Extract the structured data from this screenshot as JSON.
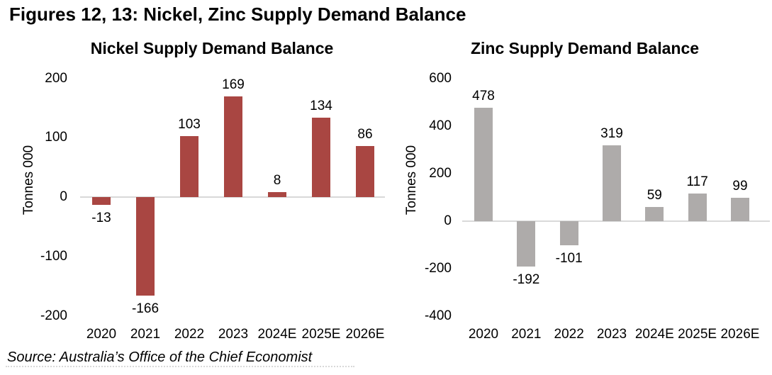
{
  "page": {
    "title": "Figures 12, 13: Nickel, Zinc Supply Demand Balance",
    "source": "Source: Australia’s Office of the Chief Economist"
  },
  "chart_data": [
    {
      "type": "bar",
      "title": "Nickel Supply Demand Balance",
      "ylabel": "Tonnes 000",
      "categories": [
        "2020",
        "2021",
        "2022",
        "2023",
        "2024E",
        "2025E",
        "2026E"
      ],
      "values": [
        -13,
        -166,
        103,
        169,
        8,
        134,
        86
      ],
      "yticks": [
        200,
        100,
        0,
        -100,
        -200
      ],
      "ylim": [
        -200,
        200
      ],
      "bar_color": "#A94642",
      "axis_color": "#D9D9D9",
      "grid": false,
      "legend": "none",
      "data_labels": true
    },
    {
      "type": "bar",
      "title": "Zinc Supply Demand Balance",
      "ylabel": "Tonnes 000",
      "categories": [
        "2020",
        "2021",
        "2022",
        "2023",
        "2024E",
        "2025E",
        "2026E"
      ],
      "values": [
        478,
        -192,
        -101,
        319,
        59,
        117,
        99
      ],
      "yticks": [
        600,
        400,
        200,
        0,
        -200,
        -400
      ],
      "ylim": [
        -400,
        600
      ],
      "bar_color": "#AEABAA",
      "axis_color": "#D9D9D9",
      "grid": false,
      "legend": "none",
      "data_labels": true
    }
  ]
}
